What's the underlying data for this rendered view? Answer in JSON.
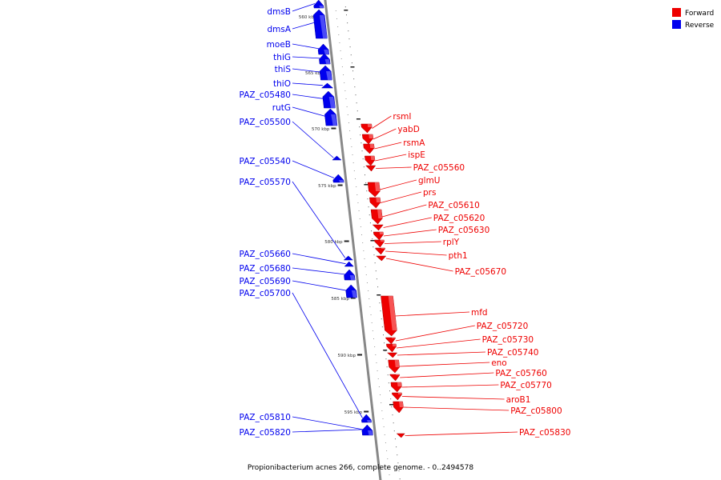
{
  "caption": "Propionibacterium acnes 266, complete genome. - 0..2494578",
  "legend": [
    {
      "label": "Forward",
      "color": "#ee0000"
    },
    {
      "label": "Reverse",
      "color": "#0000ee"
    }
  ],
  "ticks": [
    "560 kbp",
    "565 kbp",
    "570 kbp",
    "575 kbp",
    "580 kbp",
    "585 kbp",
    "590 kbp",
    "595 kbp"
  ],
  "colors": {
    "forward": "#ee0000",
    "reverse": "#0000ee",
    "axis": "#888888"
  },
  "reverse_genes": [
    "dmsB",
    "dmsA",
    "moeB",
    "thiG",
    "thiS",
    "thiO",
    "PAZ_c05480",
    "rutG",
    "PAZ_c05500",
    "PAZ_c05540",
    "PAZ_c05570",
    "PAZ_c05660",
    "PAZ_c05680",
    "PAZ_c05690",
    "PAZ_c05700",
    "PAZ_c05810",
    "PAZ_c05820"
  ],
  "forward_genes": [
    "rsmI",
    "yabD",
    "rsmA",
    "ispE",
    "PAZ_c05560",
    "glmU",
    "prs",
    "PAZ_c05610",
    "PAZ_c05620",
    "PAZ_c05630",
    "rplY",
    "pth1",
    "PAZ_c05670",
    "mfd",
    "PAZ_c05720",
    "PAZ_c05730",
    "PAZ_c05740",
    "eno",
    "PAZ_c05760",
    "PAZ_c05770",
    "aroB1",
    "PAZ_c05800",
    "PAZ_c05830"
  ]
}
